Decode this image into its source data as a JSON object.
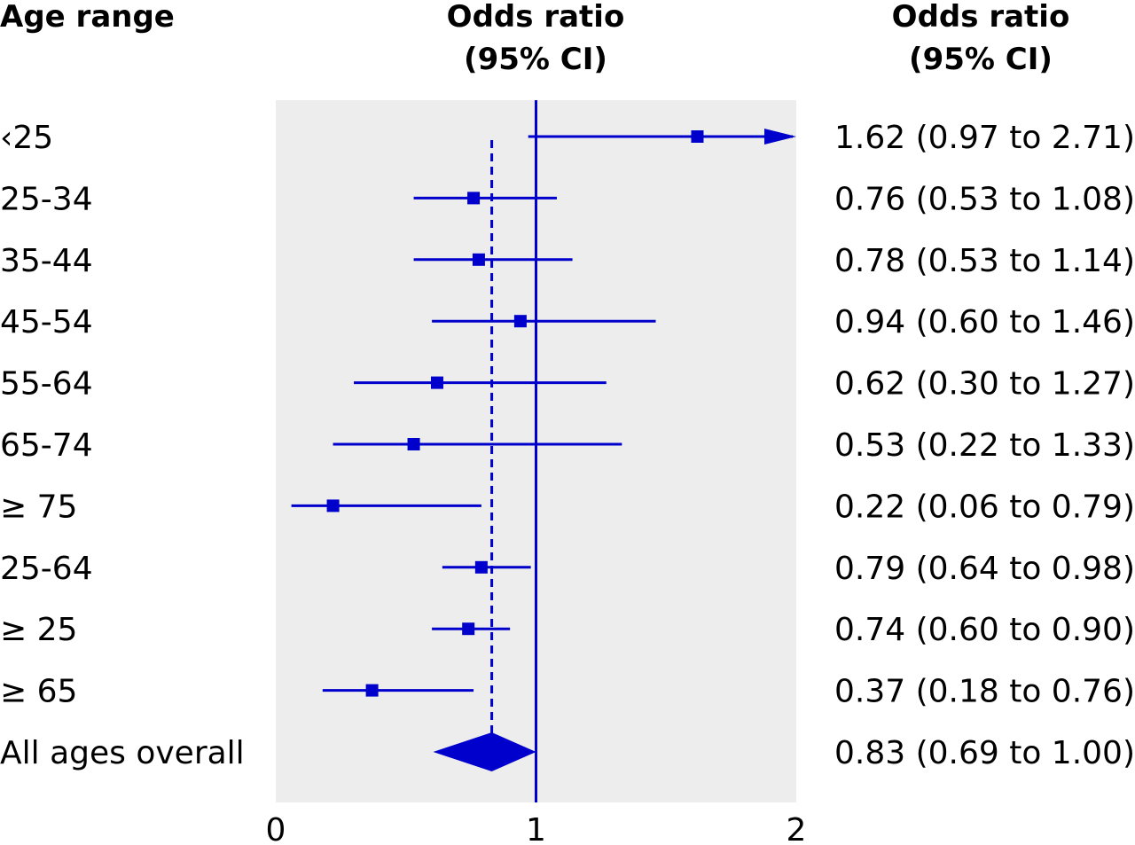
{
  "headers": {
    "left": "Age range",
    "middle": [
      "Odds ratio",
      "(95% CI)"
    ],
    "right": [
      "Odds ratio",
      "(95% CI)"
    ]
  },
  "colors": {
    "mark": "#0000cc",
    "panel": "#ededed",
    "text": "#000000"
  },
  "chart_data": {
    "type": "forest",
    "xlim": [
      0,
      2
    ],
    "xticks": [
      "0",
      "1",
      "2"
    ],
    "reference_line": 1,
    "pooled_line": 0.83,
    "grid": false,
    "rows": [
      {
        "label": "‹25",
        "or": 1.62,
        "lo": 0.97,
        "hi": 2.71,
        "text": "1.62 (0.97 to 2.71)",
        "marker": "square",
        "truncated_high": true
      },
      {
        "label": "25-34",
        "or": 0.76,
        "lo": 0.53,
        "hi": 1.08,
        "text": "0.76 (0.53 to 1.08)",
        "marker": "square"
      },
      {
        "label": "35-44",
        "or": 0.78,
        "lo": 0.53,
        "hi": 1.14,
        "text": "0.78 (0.53 to 1.14)",
        "marker": "square"
      },
      {
        "label": "45-54",
        "or": 0.94,
        "lo": 0.6,
        "hi": 1.46,
        "text": "0.94 (0.60 to 1.46)",
        "marker": "square"
      },
      {
        "label": "55-64",
        "or": 0.62,
        "lo": 0.3,
        "hi": 1.27,
        "text": "0.62 (0.30 to 1.27)",
        "marker": "square"
      },
      {
        "label": "65-74",
        "or": 0.53,
        "lo": 0.22,
        "hi": 1.33,
        "text": "0.53 (0.22 to 1.33)",
        "marker": "square"
      },
      {
        "label": "≥ 75",
        "or": 0.22,
        "lo": 0.06,
        "hi": 0.79,
        "text": "0.22 (0.06 to 0.79)",
        "marker": "square"
      },
      {
        "label": "25-64",
        "or": 0.79,
        "lo": 0.64,
        "hi": 0.98,
        "text": "0.79 (0.64 to 0.98)",
        "marker": "square"
      },
      {
        "label": "≥ 25",
        "or": 0.74,
        "lo": 0.6,
        "hi": 0.9,
        "text": "0.74 (0.60 to 0.90)",
        "marker": "square"
      },
      {
        "label": "≥ 65",
        "or": 0.37,
        "lo": 0.18,
        "hi": 0.76,
        "text": "0.37 (0.18 to 0.76)",
        "marker": "square"
      },
      {
        "label": "All ages overall",
        "or": 0.83,
        "lo": 0.69,
        "hi": 1.0,
        "text": "0.83 (0.69 to 1.00)",
        "marker": "diamond"
      }
    ]
  }
}
